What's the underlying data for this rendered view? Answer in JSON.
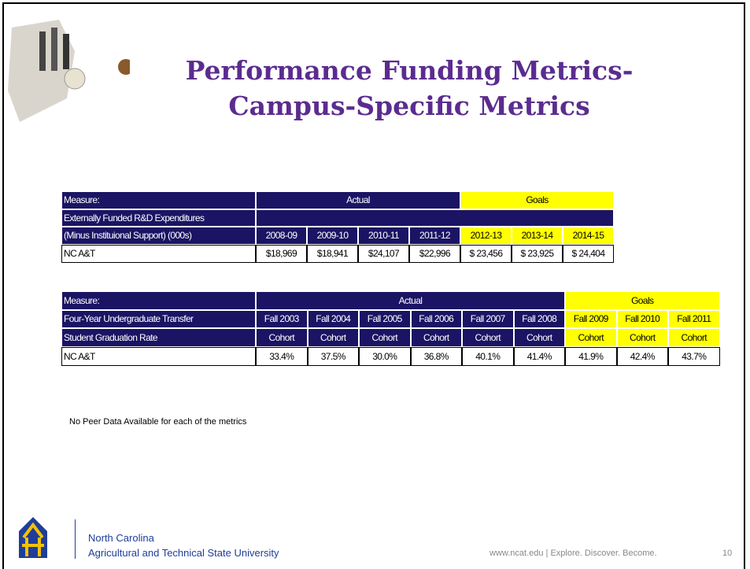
{
  "header": {
    "title_lines": [
      "Performance Funding Metrics-",
      "Campus-Specific Metrics"
    ]
  },
  "table1": {
    "measure": "Measure:",
    "label_lines": [
      "Externally Funded R&D Expenditures",
      "(Minus Instituional Support) (000s)"
    ],
    "actual": {
      "label": "Actual",
      "columns": [
        [
          "2008-09"
        ],
        [
          "2009-10"
        ],
        [
          "2010-11"
        ],
        [
          "2011-12"
        ]
      ]
    },
    "goals": {
      "label": "Goals",
      "columns": [
        [
          "2012-13"
        ],
        [
          "2013-14"
        ],
        [
          "2014-15"
        ]
      ]
    },
    "row_label": "NC A&T",
    "values": [
      "$18,969",
      "$18,941",
      "$24,107",
      "$22,996",
      "$ 23,456",
      "$ 23,925",
      "$ 24,404"
    ]
  },
  "table2": {
    "measure": "Measure:",
    "label_lines": [
      "Four-Year Undergraduate Transfer",
      "Student Graduation Rate"
    ],
    "actual": {
      "label": "Actual",
      "columns": [
        [
          "Fall 2003",
          "Cohort"
        ],
        [
          "Fall 2004",
          "Cohort"
        ],
        [
          "Fall 2005",
          "Cohort"
        ],
        [
          "Fall 2006",
          "Cohort"
        ],
        [
          "Fall 2007",
          "Cohort"
        ],
        [
          "Fall 2008",
          "Cohort"
        ]
      ]
    },
    "goals": {
      "label": "Goals",
      "columns": [
        [
          "Fall 2009",
          "Cohort"
        ],
        [
          "Fall 2010",
          "Cohort"
        ],
        [
          "Fall 2011",
          "Cohort"
        ]
      ]
    },
    "row_label": "NC A&T",
    "values": [
      "33.4%",
      "37.5%",
      "30.0%",
      "36.8%",
      "40.1%",
      "41.4%",
      "41.9%",
      "42.4%",
      "43.7%"
    ]
  },
  "note": "No Peer Data Available for each of the metrics",
  "footer": {
    "org_lines": [
      "North Carolina",
      "Agricultural and Technical State University"
    ],
    "tagline": "www.ncat.edu | Explore. Discover. Become.",
    "page": "10"
  }
}
